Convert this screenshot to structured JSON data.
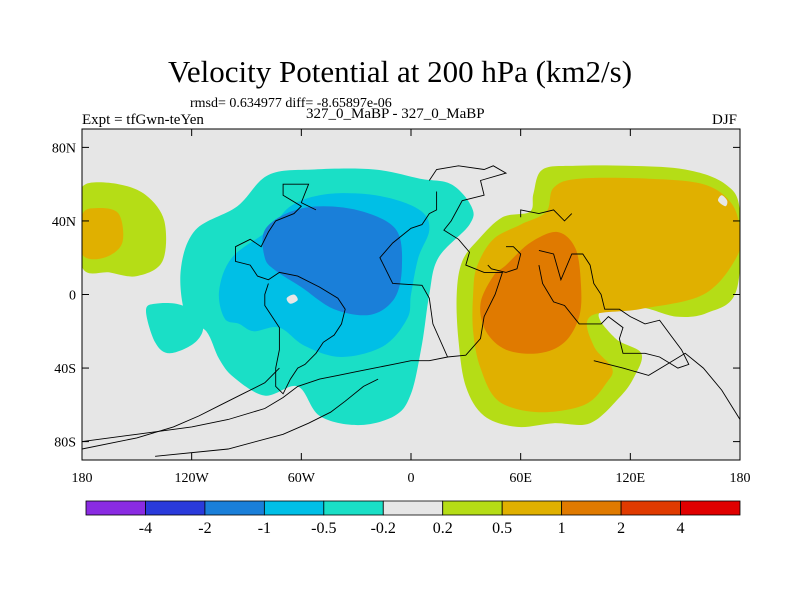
{
  "chart_data": {
    "type": "contour-map",
    "title": "Velocity Potential at 200 hPa (km2/s)",
    "stats_line": "rmsd= 0.634977 diff= -8.65897e-06",
    "left_label": "Expt = tfGwn-teYen",
    "center_label": "327_0_MaBP - 327_0_MaBP",
    "right_label": "DJF",
    "xlim": [
      -180,
      180
    ],
    "ylim": [
      -90,
      90
    ],
    "x_ticks": [
      {
        "value": -180,
        "label": "180"
      },
      {
        "value": -120,
        "label": "120W"
      },
      {
        "value": -60,
        "label": "60W"
      },
      {
        "value": 0,
        "label": "0"
      },
      {
        "value": 60,
        "label": "60E"
      },
      {
        "value": 120,
        "label": "120E"
      },
      {
        "value": 180,
        "label": "180"
      }
    ],
    "y_ticks": [
      {
        "value": 80,
        "label": "80N"
      },
      {
        "value": 40,
        "label": "40N"
      },
      {
        "value": 0,
        "label": "0"
      },
      {
        "value": -40,
        "label": "40S"
      },
      {
        "value": -80,
        "label": "80S"
      }
    ],
    "background_color": "#e6e6e6",
    "colorbar": {
      "colors": [
        "#8a2be2",
        "#2a3adb",
        "#1a7fd9",
        "#00bfe6",
        "#1adfc6",
        "#e6e6e6",
        "#b5dd16",
        "#e0b000",
        "#e07a00",
        "#e03a00",
        "#e00000"
      ],
      "labels": [
        "-4",
        "-2",
        "-1",
        "-0.5",
        "-0.2",
        "0.2",
        "0.5",
        "1",
        "2",
        "4"
      ]
    },
    "regions": [
      {
        "level": "-0.2 to -0.5",
        "color": "#1adfc6",
        "points": [
          [
            -145,
            -9
          ],
          [
            -140,
            -26
          ],
          [
            -132,
            -32
          ],
          [
            -118,
            -26
          ],
          [
            -114,
            -16
          ],
          [
            -125,
            -6
          ],
          [
            -140,
            -5
          ]
        ]
      },
      {
        "level": "-0.2 to -0.5",
        "color": "#1adfc6",
        "points": [
          [
            -123,
            -12
          ],
          [
            -126,
            13
          ],
          [
            -118,
            35
          ],
          [
            -95,
            48
          ],
          [
            -78,
            65
          ],
          [
            -53,
            68
          ],
          [
            -20,
            68
          ],
          [
            5,
            63
          ],
          [
            22,
            60
          ],
          [
            33,
            48
          ],
          [
            32,
            38
          ],
          [
            15,
            20
          ],
          [
            10,
            0
          ],
          [
            6,
            -27
          ],
          [
            0,
            -54
          ],
          [
            -9,
            -66
          ],
          [
            -29,
            -71
          ],
          [
            -50,
            -66
          ],
          [
            -62,
            -50
          ],
          [
            -80,
            -55
          ],
          [
            -97,
            -45
          ],
          [
            -105,
            -35
          ],
          [
            -112,
            -20
          ]
        ]
      },
      {
        "level": "-0.5 to -1",
        "color": "#00bfe6",
        "points": [
          [
            -102,
            -13
          ],
          [
            -105,
            2
          ],
          [
            -98,
            20
          ],
          [
            -78,
            35
          ],
          [
            -66,
            48
          ],
          [
            -50,
            54
          ],
          [
            -30,
            55
          ],
          [
            -10,
            52
          ],
          [
            6,
            45
          ],
          [
            10,
            35
          ],
          [
            4,
            20
          ],
          [
            0,
            0
          ],
          [
            -2,
            -13
          ],
          [
            -15,
            -28
          ],
          [
            -38,
            -34
          ],
          [
            -58,
            -28
          ],
          [
            -72,
            -18
          ],
          [
            -86,
            -20
          ],
          [
            -94,
            -16
          ]
        ]
      },
      {
        "level": "-1 to -2",
        "color": "#1a7fd9",
        "points": [
          [
            -80,
            20
          ],
          [
            -80,
            35
          ],
          [
            -66,
            45
          ],
          [
            -48,
            48
          ],
          [
            -26,
            45
          ],
          [
            -8,
            35
          ],
          [
            -5,
            15
          ],
          [
            -9,
            -2
          ],
          [
            -22,
            -11
          ],
          [
            -42,
            -8
          ],
          [
            -60,
            4
          ],
          [
            -74,
            13
          ]
        ]
      },
      {
        "level": "0.2 to 0.5",
        "color": "#b5dd16",
        "points": [
          [
            -180,
            50
          ],
          [
            -178,
            60
          ],
          [
            -160,
            60
          ],
          [
            -145,
            54
          ],
          [
            -135,
            40
          ],
          [
            -136,
            18
          ],
          [
            -150,
            10
          ],
          [
            -165,
            12
          ],
          [
            -180,
            15
          ]
        ]
      },
      {
        "level": "0.5 to 1",
        "color": "#e0b000",
        "points": [
          [
            -180,
            43
          ],
          [
            -172,
            47
          ],
          [
            -160,
            44
          ],
          [
            -158,
            28
          ],
          [
            -168,
            20
          ],
          [
            -180,
            22
          ]
        ]
      },
      {
        "level": "0.2 to 0.5",
        "color": "#b5dd16",
        "points": [
          [
            180,
            45
          ],
          [
            172,
            60
          ],
          [
            150,
            68
          ],
          [
            118,
            70
          ],
          [
            90,
            70
          ],
          [
            72,
            68
          ],
          [
            67,
            55
          ],
          [
            65,
            45
          ],
          [
            50,
            42
          ],
          [
            37,
            30
          ],
          [
            28,
            18
          ],
          [
            25,
            0
          ],
          [
            26,
            -25
          ],
          [
            30,
            -50
          ],
          [
            40,
            -66
          ],
          [
            58,
            -72
          ],
          [
            78,
            -70
          ],
          [
            98,
            -70
          ],
          [
            114,
            -56
          ],
          [
            122,
            -45
          ],
          [
            126,
            -32
          ],
          [
            112,
            -24
          ],
          [
            103,
            -10
          ],
          [
            125,
            -7
          ],
          [
            145,
            -12
          ],
          [
            162,
            -10
          ],
          [
            178,
            2
          ]
        ]
      },
      {
        "level": "0.5 to 1",
        "color": "#e0b000",
        "points": [
          [
            180,
            35
          ],
          [
            175,
            50
          ],
          [
            160,
            60
          ],
          [
            130,
            63
          ],
          [
            92,
            63
          ],
          [
            78,
            58
          ],
          [
            74,
            45
          ],
          [
            60,
            38
          ],
          [
            45,
            30
          ],
          [
            36,
            15
          ],
          [
            34,
            0
          ],
          [
            34,
            -20
          ],
          [
            38,
            -40
          ],
          [
            48,
            -58
          ],
          [
            70,
            -64
          ],
          [
            95,
            -60
          ],
          [
            107,
            -48
          ],
          [
            110,
            -40
          ],
          [
            100,
            -28
          ],
          [
            98,
            -12
          ],
          [
            125,
            -8
          ],
          [
            160,
            0
          ],
          [
            178,
            20
          ]
        ]
      },
      {
        "level": "1 to 2",
        "color": "#e07a00",
        "points": [
          [
            38,
            -5
          ],
          [
            41,
            -20
          ],
          [
            52,
            -30
          ],
          [
            70,
            -32
          ],
          [
            84,
            -26
          ],
          [
            92,
            -12
          ],
          [
            93,
            5
          ],
          [
            90,
            25
          ],
          [
            80,
            34
          ],
          [
            65,
            28
          ],
          [
            52,
            16
          ],
          [
            45,
            10
          ]
        ]
      }
    ],
    "holes": [
      {
        "level": "-0.2 to 0.2",
        "color": "#e6e6e6",
        "points": [
          [
            -68,
            -2
          ],
          [
            -66,
            -5
          ],
          [
            -62,
            -3
          ],
          [
            -64,
            0
          ]
        ]
      },
      {
        "level": "-0.2 to 0.2",
        "color": "#e6e6e6",
        "points": [
          [
            172,
            48
          ],
          [
            168,
            51
          ],
          [
            170,
            54
          ],
          [
            173,
            51
          ]
        ]
      }
    ],
    "coastlines": [
      [
        [
          10,
          62
        ],
        [
          14,
          68
        ],
        [
          26,
          70
        ],
        [
          40,
          68
        ],
        [
          45,
          70
        ],
        [
          52,
          66
        ],
        [
          38,
          62
        ],
        [
          40,
          54
        ],
        [
          28,
          51
        ],
        [
          22,
          40
        ],
        [
          18,
          35
        ],
        [
          26,
          30
        ],
        [
          32,
          23
        ],
        [
          30,
          16
        ],
        [
          40,
          12
        ],
        [
          50,
          12
        ],
        [
          46,
          0
        ],
        [
          40,
          -12
        ],
        [
          38,
          -24
        ],
        [
          30,
          -33
        ],
        [
          20,
          -34
        ],
        [
          12,
          -16
        ],
        [
          10,
          -2
        ],
        [
          6,
          5
        ],
        [
          -10,
          6
        ],
        [
          -17,
          20
        ],
        [
          -10,
          28
        ],
        [
          0,
          36
        ],
        [
          6,
          38
        ],
        [
          10,
          44
        ],
        [
          14,
          46
        ],
        [
          14,
          56
        ]
      ],
      [
        [
          52,
          26
        ],
        [
          56,
          26
        ],
        [
          60,
          22
        ],
        [
          58,
          14
        ],
        [
          52,
          12
        ],
        [
          44,
          14
        ],
        [
          42,
          16
        ]
      ],
      [
        [
          60,
          42
        ],
        [
          60,
          46
        ],
        [
          70,
          44
        ],
        [
          78,
          46
        ],
        [
          84,
          40
        ],
        [
          88,
          44
        ]
      ],
      [
        [
          70,
          24
        ],
        [
          78,
          22
        ],
        [
          82,
          8
        ],
        [
          88,
          22
        ],
        [
          94,
          22
        ],
        [
          98,
          16
        ],
        [
          100,
          6
        ],
        [
          104,
          0
        ],
        [
          106,
          -8
        ],
        [
          114,
          -8
        ],
        [
          120,
          -12
        ],
        [
          128,
          -16
        ],
        [
          136,
          -14
        ],
        [
          142,
          -22
        ],
        [
          148,
          -30
        ],
        [
          152,
          -38
        ],
        [
          146,
          -40
        ],
        [
          136,
          -34
        ],
        [
          128,
          -32
        ],
        [
          116,
          -32
        ],
        [
          114,
          -24
        ],
        [
          116,
          -18
        ],
        [
          108,
          -12
        ],
        [
          104,
          -16
        ],
        [
          92,
          -16
        ],
        [
          84,
          -6
        ],
        [
          78,
          -4
        ],
        [
          72,
          6
        ],
        [
          70,
          16
        ]
      ],
      [
        [
          -52,
          46
        ],
        [
          -60,
          50
        ],
        [
          -56,
          60
        ],
        [
          -70,
          60
        ],
        [
          -70,
          54
        ],
        [
          -60,
          48
        ],
        [
          -64,
          44
        ],
        [
          -74,
          40
        ],
        [
          -78,
          34
        ],
        [
          -82,
          26
        ],
        [
          -88,
          30
        ],
        [
          -96,
          26
        ],
        [
          -96,
          18
        ],
        [
          -88,
          16
        ],
        [
          -84,
          10
        ],
        [
          -78,
          8
        ],
        [
          -72,
          12
        ],
        [
          -62,
          10
        ],
        [
          -50,
          4
        ],
        [
          -40,
          -2
        ],
        [
          -36,
          -8
        ],
        [
          -38,
          -16
        ],
        [
          -42,
          -22
        ],
        [
          -48,
          -26
        ],
        [
          -52,
          -32
        ],
        [
          -58,
          -38
        ],
        [
          -62,
          -40
        ],
        [
          -66,
          -46
        ],
        [
          -70,
          -54
        ],
        [
          -74,
          -50
        ],
        [
          -74,
          -40
        ],
        [
          -72,
          -30
        ],
        [
          -72,
          -18
        ],
        [
          -80,
          -6
        ],
        [
          -80,
          0
        ],
        [
          -78,
          6
        ]
      ],
      [
        [
          -180,
          -80
        ],
        [
          -150,
          -76
        ],
        [
          -120,
          -72
        ],
        [
          -100,
          -68
        ],
        [
          -80,
          -62
        ],
        [
          -70,
          -56
        ],
        [
          -62,
          -50
        ],
        [
          -50,
          -46
        ],
        [
          -40,
          -44
        ],
        [
          -30,
          -42
        ],
        [
          -20,
          -40
        ],
        [
          -10,
          -38
        ],
        [
          0,
          -36
        ],
        [
          10,
          -36
        ],
        [
          20,
          -34
        ]
      ],
      [
        [
          -140,
          -88
        ],
        [
          -100,
          -84
        ],
        [
          -70,
          -76
        ],
        [
          -56,
          -70
        ],
        [
          -44,
          -64
        ],
        [
          -36,
          -58
        ],
        [
          -26,
          -50
        ],
        [
          -18,
          -46
        ]
      ],
      [
        [
          -72,
          -40
        ],
        [
          -80,
          -48
        ],
        [
          -92,
          -54
        ],
        [
          -104,
          -60
        ],
        [
          -116,
          -66
        ],
        [
          -130,
          -72
        ],
        [
          -150,
          -78
        ],
        [
          -180,
          -84
        ]
      ],
      [
        [
          100,
          -36
        ],
        [
          116,
          -40
        ],
        [
          130,
          -44
        ],
        [
          140,
          -38
        ],
        [
          150,
          -32
        ],
        [
          160,
          -40
        ],
        [
          170,
          -52
        ],
        [
          180,
          -68
        ]
      ]
    ]
  }
}
